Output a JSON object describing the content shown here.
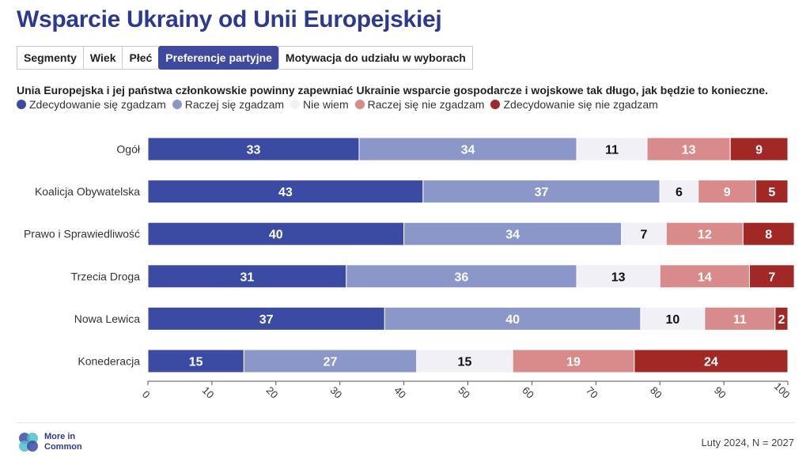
{
  "title": "Wsparcie Ukrainy od Unii Europejskiej",
  "tabs": [
    {
      "label": "Segmenty",
      "active": false
    },
    {
      "label": "Wiek",
      "active": false
    },
    {
      "label": "Płeć",
      "active": false
    },
    {
      "label": "Preferencje partyjne",
      "active": true
    },
    {
      "label": "Motywacja do udziału w wyborach",
      "active": false
    }
  ],
  "question": "Unia Europejska i jej państwa członkowskie powinny zapewniać Ukrainie wsparcie gospodarcze i wojskowe tak długo, jak będzie to konieczne.",
  "legend": [
    {
      "label": "Zdecydowanie się zgadzam",
      "color": "#3b4aa3"
    },
    {
      "label": "Raczej się zgadzam",
      "color": "#8b96c9"
    },
    {
      "label": "Nie wiem",
      "color": "#f0f0f6"
    },
    {
      "label": "Raczej się nie zgadzam",
      "color": "#d98a8a"
    },
    {
      "label": "Zdecydowanie się nie zgadzam",
      "color": "#a22826"
    }
  ],
  "chart_data": {
    "type": "bar",
    "orientation": "horizontal",
    "stacked": true,
    "categories": [
      "Ogół",
      "Koalicja Obywatelska",
      "Prawo i Sprawiedliwość",
      "Trzecia Droga",
      "Nowa Lewica",
      "Konederacja"
    ],
    "series": [
      {
        "name": "Zdecydowanie się zgadzam",
        "color": "#3b4aa3",
        "label_color": "#ffffff",
        "values": [
          33,
          43,
          40,
          31,
          37,
          15
        ]
      },
      {
        "name": "Raczej się zgadzam",
        "color": "#8b96c9",
        "label_color": "#ffffff",
        "values": [
          34,
          37,
          34,
          36,
          40,
          27
        ]
      },
      {
        "name": "Nie wiem",
        "color": "#f0f0f6",
        "label_color": "#111111",
        "values": [
          11,
          6,
          7,
          13,
          10,
          15
        ]
      },
      {
        "name": "Raczej się nie zgadzam",
        "color": "#d98a8a",
        "label_color": "#ffffff",
        "values": [
          13,
          9,
          12,
          14,
          11,
          19
        ]
      },
      {
        "name": "Zdecydowanie się nie zgadzam",
        "color": "#a22826",
        "label_color": "#ffffff",
        "values": [
          9,
          5,
          8,
          7,
          2,
          24
        ]
      }
    ],
    "xlim": [
      0,
      100
    ],
    "xticks": [
      0,
      10,
      20,
      30,
      40,
      50,
      60,
      70,
      80,
      90,
      100
    ],
    "grid": false,
    "legend_position": "top-left"
  },
  "logo": {
    "line1": "More in",
    "line2": "Common"
  },
  "source": "Luty 2024, N = 2027"
}
